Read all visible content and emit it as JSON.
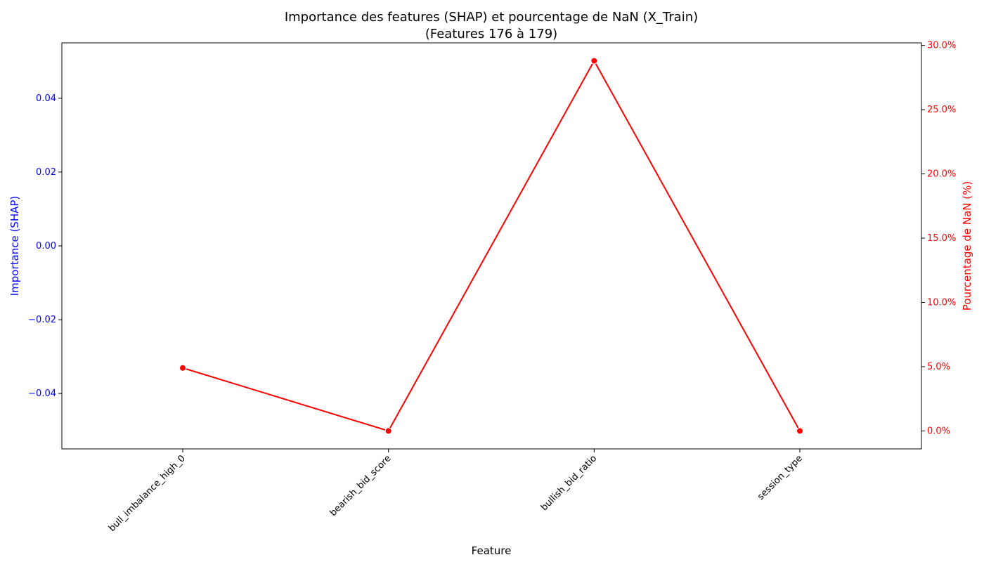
{
  "chart_data": {
    "type": "line",
    "title": "Importance des features (SHAP) et pourcentage de NaN (X_Train)",
    "subtitle": "(Features 176 à 179)",
    "xlabel": "Feature",
    "ylabel_left": "Importance (SHAP)",
    "ylabel_right": "Pourcentage de NaN (%)",
    "categories": [
      "bull_imbalance_high_0",
      "bearish_bid_score",
      "bullish_bid_ratio",
      "session_type"
    ],
    "ylim_left": [
      -0.055,
      0.055
    ],
    "left_ticks": [
      "−0.04",
      "−0.02",
      "0.00",
      "0.02",
      "0.04"
    ],
    "left_tick_values": [
      -0.04,
      -0.02,
      0.0,
      0.02,
      0.04
    ],
    "ylim_right": [
      -1.4,
      30.2
    ],
    "right_ticks": [
      "0.0%",
      "5.0%",
      "10.0%",
      "15.0%",
      "20.0%",
      "25.0%",
      "30.0%"
    ],
    "right_tick_values": [
      0,
      5,
      10,
      15,
      20,
      25,
      30
    ],
    "series": [
      {
        "axis": "right",
        "values": [
          4.9,
          0.0,
          28.8,
          0.0
        ]
      }
    ],
    "colors": {
      "left_axis": "#0000ff",
      "right_axis": "#ff0000",
      "line": "#ff0000",
      "text": "#000000"
    },
    "grid": false
  }
}
